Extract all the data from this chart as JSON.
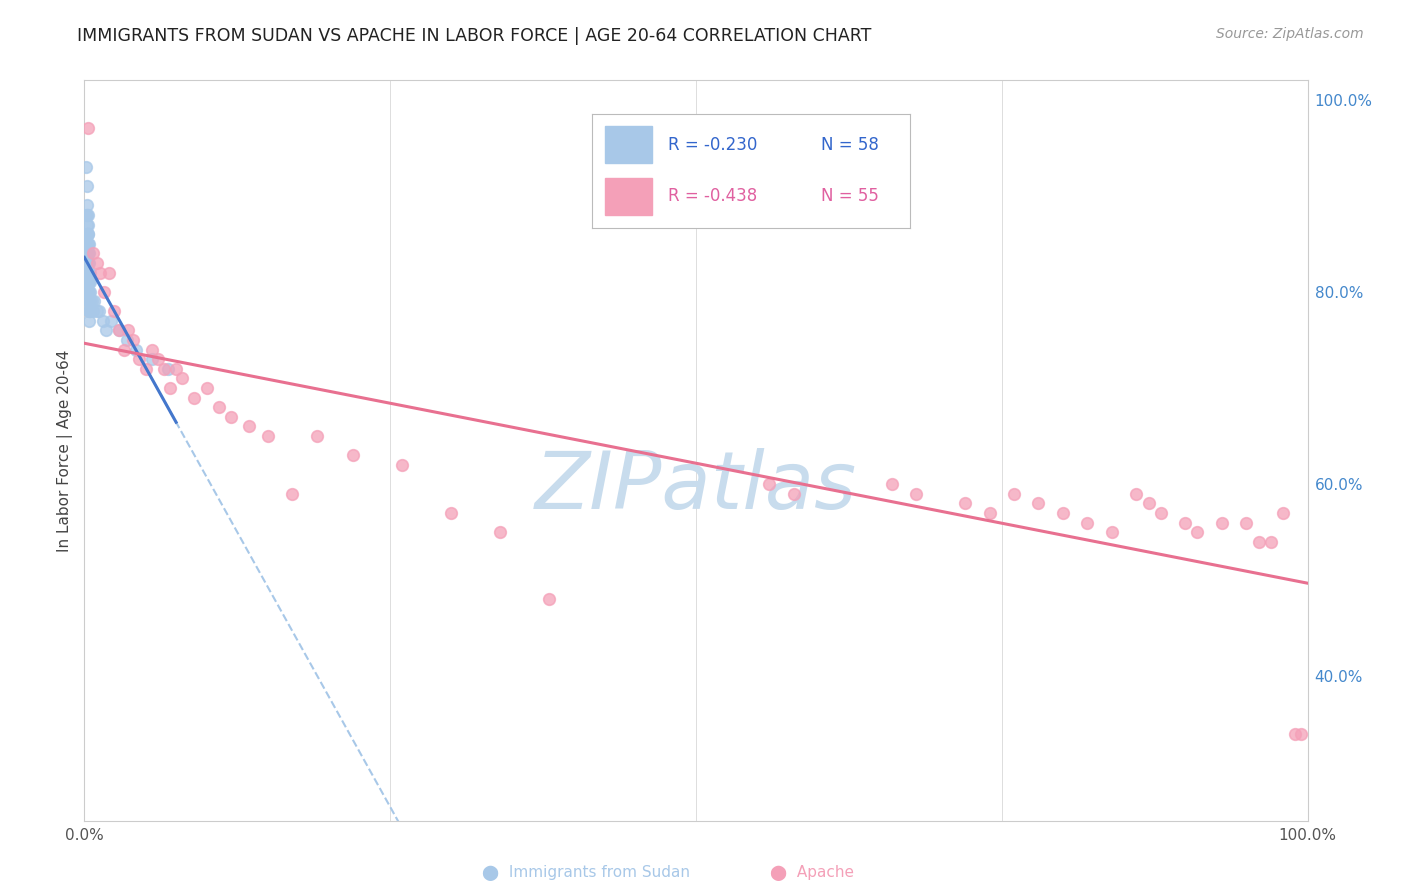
{
  "title": "IMMIGRANTS FROM SUDAN VS APACHE IN LABOR FORCE | AGE 20-64 CORRELATION CHART",
  "source": "Source: ZipAtlas.com",
  "ylabel": "In Labor Force | Age 20-64",
  "xlim": [
    0.0,
    1.0
  ],
  "ylim": [
    0.25,
    1.02
  ],
  "xtick_vals": [
    0.0,
    0.25,
    0.5,
    0.75,
    1.0
  ],
  "xticklabels": [
    "0.0%",
    "",
    "",
    "",
    "100.0%"
  ],
  "ytick_vals": [
    0.4,
    0.6,
    0.8,
    1.0
  ],
  "yticklabels_right": [
    "40.0%",
    "60.0%",
    "80.0%",
    "100.0%"
  ],
  "legend_text_sudan": "R = -0.230   N = 58",
  "legend_text_apache": "R = -0.438   N = 55",
  "sudan_color": "#a8c8e8",
  "apache_color": "#f4a0b8",
  "trend_sudan_color": "#4477cc",
  "trend_apache_color": "#e87090",
  "dashed_color": "#a8c8e8",
  "watermark_color": "#c8dced",
  "grid_color": "#dddddd",
  "background_color": "#ffffff",
  "sudan_scatter_x": [
    0.001,
    0.001,
    0.001,
    0.001,
    0.002,
    0.002,
    0.002,
    0.002,
    0.002,
    0.002,
    0.003,
    0.003,
    0.003,
    0.003,
    0.003,
    0.003,
    0.003,
    0.003,
    0.003,
    0.003,
    0.003,
    0.003,
    0.003,
    0.003,
    0.003,
    0.003,
    0.003,
    0.003,
    0.003,
    0.003,
    0.004,
    0.004,
    0.004,
    0.004,
    0.004,
    0.004,
    0.004,
    0.004,
    0.004,
    0.004,
    0.005,
    0.005,
    0.005,
    0.005,
    0.005,
    0.006,
    0.007,
    0.008,
    0.01,
    0.012,
    0.015,
    0.018,
    0.022,
    0.028,
    0.035,
    0.042,
    0.055,
    0.068
  ],
  "sudan_scatter_y": [
    0.93,
    0.88,
    0.86,
    0.84,
    0.91,
    0.89,
    0.88,
    0.87,
    0.86,
    0.85,
    0.88,
    0.87,
    0.86,
    0.86,
    0.85,
    0.85,
    0.84,
    0.84,
    0.84,
    0.83,
    0.83,
    0.83,
    0.82,
    0.82,
    0.82,
    0.81,
    0.81,
    0.8,
    0.8,
    0.79,
    0.85,
    0.84,
    0.83,
    0.82,
    0.81,
    0.8,
    0.79,
    0.78,
    0.78,
    0.77,
    0.82,
    0.81,
    0.8,
    0.79,
    0.78,
    0.79,
    0.78,
    0.79,
    0.78,
    0.78,
    0.77,
    0.76,
    0.77,
    0.76,
    0.75,
    0.74,
    0.73,
    0.72
  ],
  "apache_scatter_x": [
    0.003,
    0.007,
    0.01,
    0.013,
    0.016,
    0.02,
    0.024,
    0.028,
    0.032,
    0.036,
    0.04,
    0.045,
    0.05,
    0.055,
    0.06,
    0.065,
    0.07,
    0.075,
    0.08,
    0.09,
    0.1,
    0.11,
    0.12,
    0.135,
    0.15,
    0.17,
    0.19,
    0.22,
    0.26,
    0.3,
    0.34,
    0.38,
    0.56,
    0.58,
    0.66,
    0.68,
    0.72,
    0.74,
    0.76,
    0.78,
    0.8,
    0.82,
    0.84,
    0.86,
    0.87,
    0.88,
    0.9,
    0.91,
    0.93,
    0.95,
    0.96,
    0.97,
    0.98,
    0.99,
    0.995
  ],
  "apache_scatter_y": [
    0.97,
    0.84,
    0.83,
    0.82,
    0.8,
    0.82,
    0.78,
    0.76,
    0.74,
    0.76,
    0.75,
    0.73,
    0.72,
    0.74,
    0.73,
    0.72,
    0.7,
    0.72,
    0.71,
    0.69,
    0.7,
    0.68,
    0.67,
    0.66,
    0.65,
    0.59,
    0.65,
    0.63,
    0.62,
    0.57,
    0.55,
    0.48,
    0.6,
    0.59,
    0.6,
    0.59,
    0.58,
    0.57,
    0.59,
    0.58,
    0.57,
    0.56,
    0.55,
    0.59,
    0.58,
    0.57,
    0.56,
    0.55,
    0.56,
    0.56,
    0.54,
    0.54,
    0.57,
    0.34,
    0.34
  ]
}
